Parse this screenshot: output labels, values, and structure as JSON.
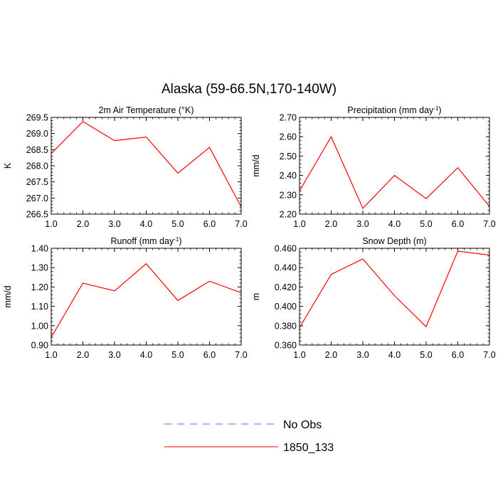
{
  "figure": {
    "title": "Alaska (59-66.5N,170-140W)",
    "legend": {
      "entries": [
        {
          "label": "No Obs",
          "color": "#6666ff",
          "dash": true
        },
        {
          "label": "1850_133",
          "color": "#ff0000",
          "dash": false
        }
      ]
    }
  },
  "chart_data": [
    {
      "type": "line",
      "title": "2m Air Temperature (°K)",
      "ylabel": "K",
      "x": [
        1.0,
        2.0,
        3.0,
        4.0,
        5.0,
        6.0,
        7.0
      ],
      "xticks": [
        "1.0",
        "2.0",
        "3.0",
        "4.0",
        "5.0",
        "6.0",
        "7.0"
      ],
      "ylim": [
        266.5,
        269.5
      ],
      "yticks": [
        "266.5",
        "267.0",
        "267.5",
        "268.0",
        "268.5",
        "269.0",
        "269.5"
      ],
      "series": [
        {
          "name": "1850_133",
          "color": "#ff0000",
          "values": [
            268.38,
            269.37,
            268.78,
            268.89,
            267.77,
            268.57,
            266.72
          ]
        }
      ]
    },
    {
      "type": "line",
      "title": "Precipitation (mm day-1)",
      "ylabel": "mm/d",
      "x": [
        1.0,
        2.0,
        3.0,
        4.0,
        5.0,
        6.0,
        7.0
      ],
      "xticks": [
        "1.0",
        "2.0",
        "3.0",
        "4.0",
        "5.0",
        "6.0",
        "7.0"
      ],
      "ylim": [
        2.2,
        2.7
      ],
      "yticks": [
        "2.20",
        "2.30",
        "2.40",
        "2.50",
        "2.60",
        "2.70"
      ],
      "series": [
        {
          "name": "1850_133",
          "color": "#ff0000",
          "values": [
            2.32,
            2.6,
            2.23,
            2.4,
            2.28,
            2.44,
            2.24
          ]
        }
      ]
    },
    {
      "type": "line",
      "title": "Runoff (mm day-1)",
      "ylabel": "mm/d",
      "x": [
        1.0,
        2.0,
        3.0,
        4.0,
        5.0,
        6.0,
        7.0
      ],
      "xticks": [
        "1.0",
        "2.0",
        "3.0",
        "4.0",
        "5.0",
        "6.0",
        "7.0"
      ],
      "ylim": [
        0.9,
        1.4
      ],
      "yticks": [
        "0.90",
        "1.00",
        "1.10",
        "1.20",
        "1.30",
        "1.40"
      ],
      "series": [
        {
          "name": "1850_133",
          "color": "#ff0000",
          "values": [
            0.94,
            1.22,
            1.18,
            1.32,
            1.13,
            1.23,
            1.17
          ]
        }
      ]
    },
    {
      "type": "line",
      "title": "Snow Depth (m)",
      "ylabel": "m",
      "x": [
        1.0,
        2.0,
        3.0,
        4.0,
        5.0,
        6.0,
        7.0
      ],
      "xticks": [
        "1.0",
        "2.0",
        "3.0",
        "4.0",
        "5.0",
        "6.0",
        "7.0"
      ],
      "ylim": [
        0.36,
        0.46
      ],
      "yticks": [
        "0.360",
        "0.380",
        "0.400",
        "0.420",
        "0.440",
        "0.460"
      ],
      "series": [
        {
          "name": "1850_133",
          "color": "#ff0000",
          "values": [
            0.378,
            0.433,
            0.449,
            0.411,
            0.379,
            0.457,
            0.453
          ]
        }
      ]
    }
  ]
}
